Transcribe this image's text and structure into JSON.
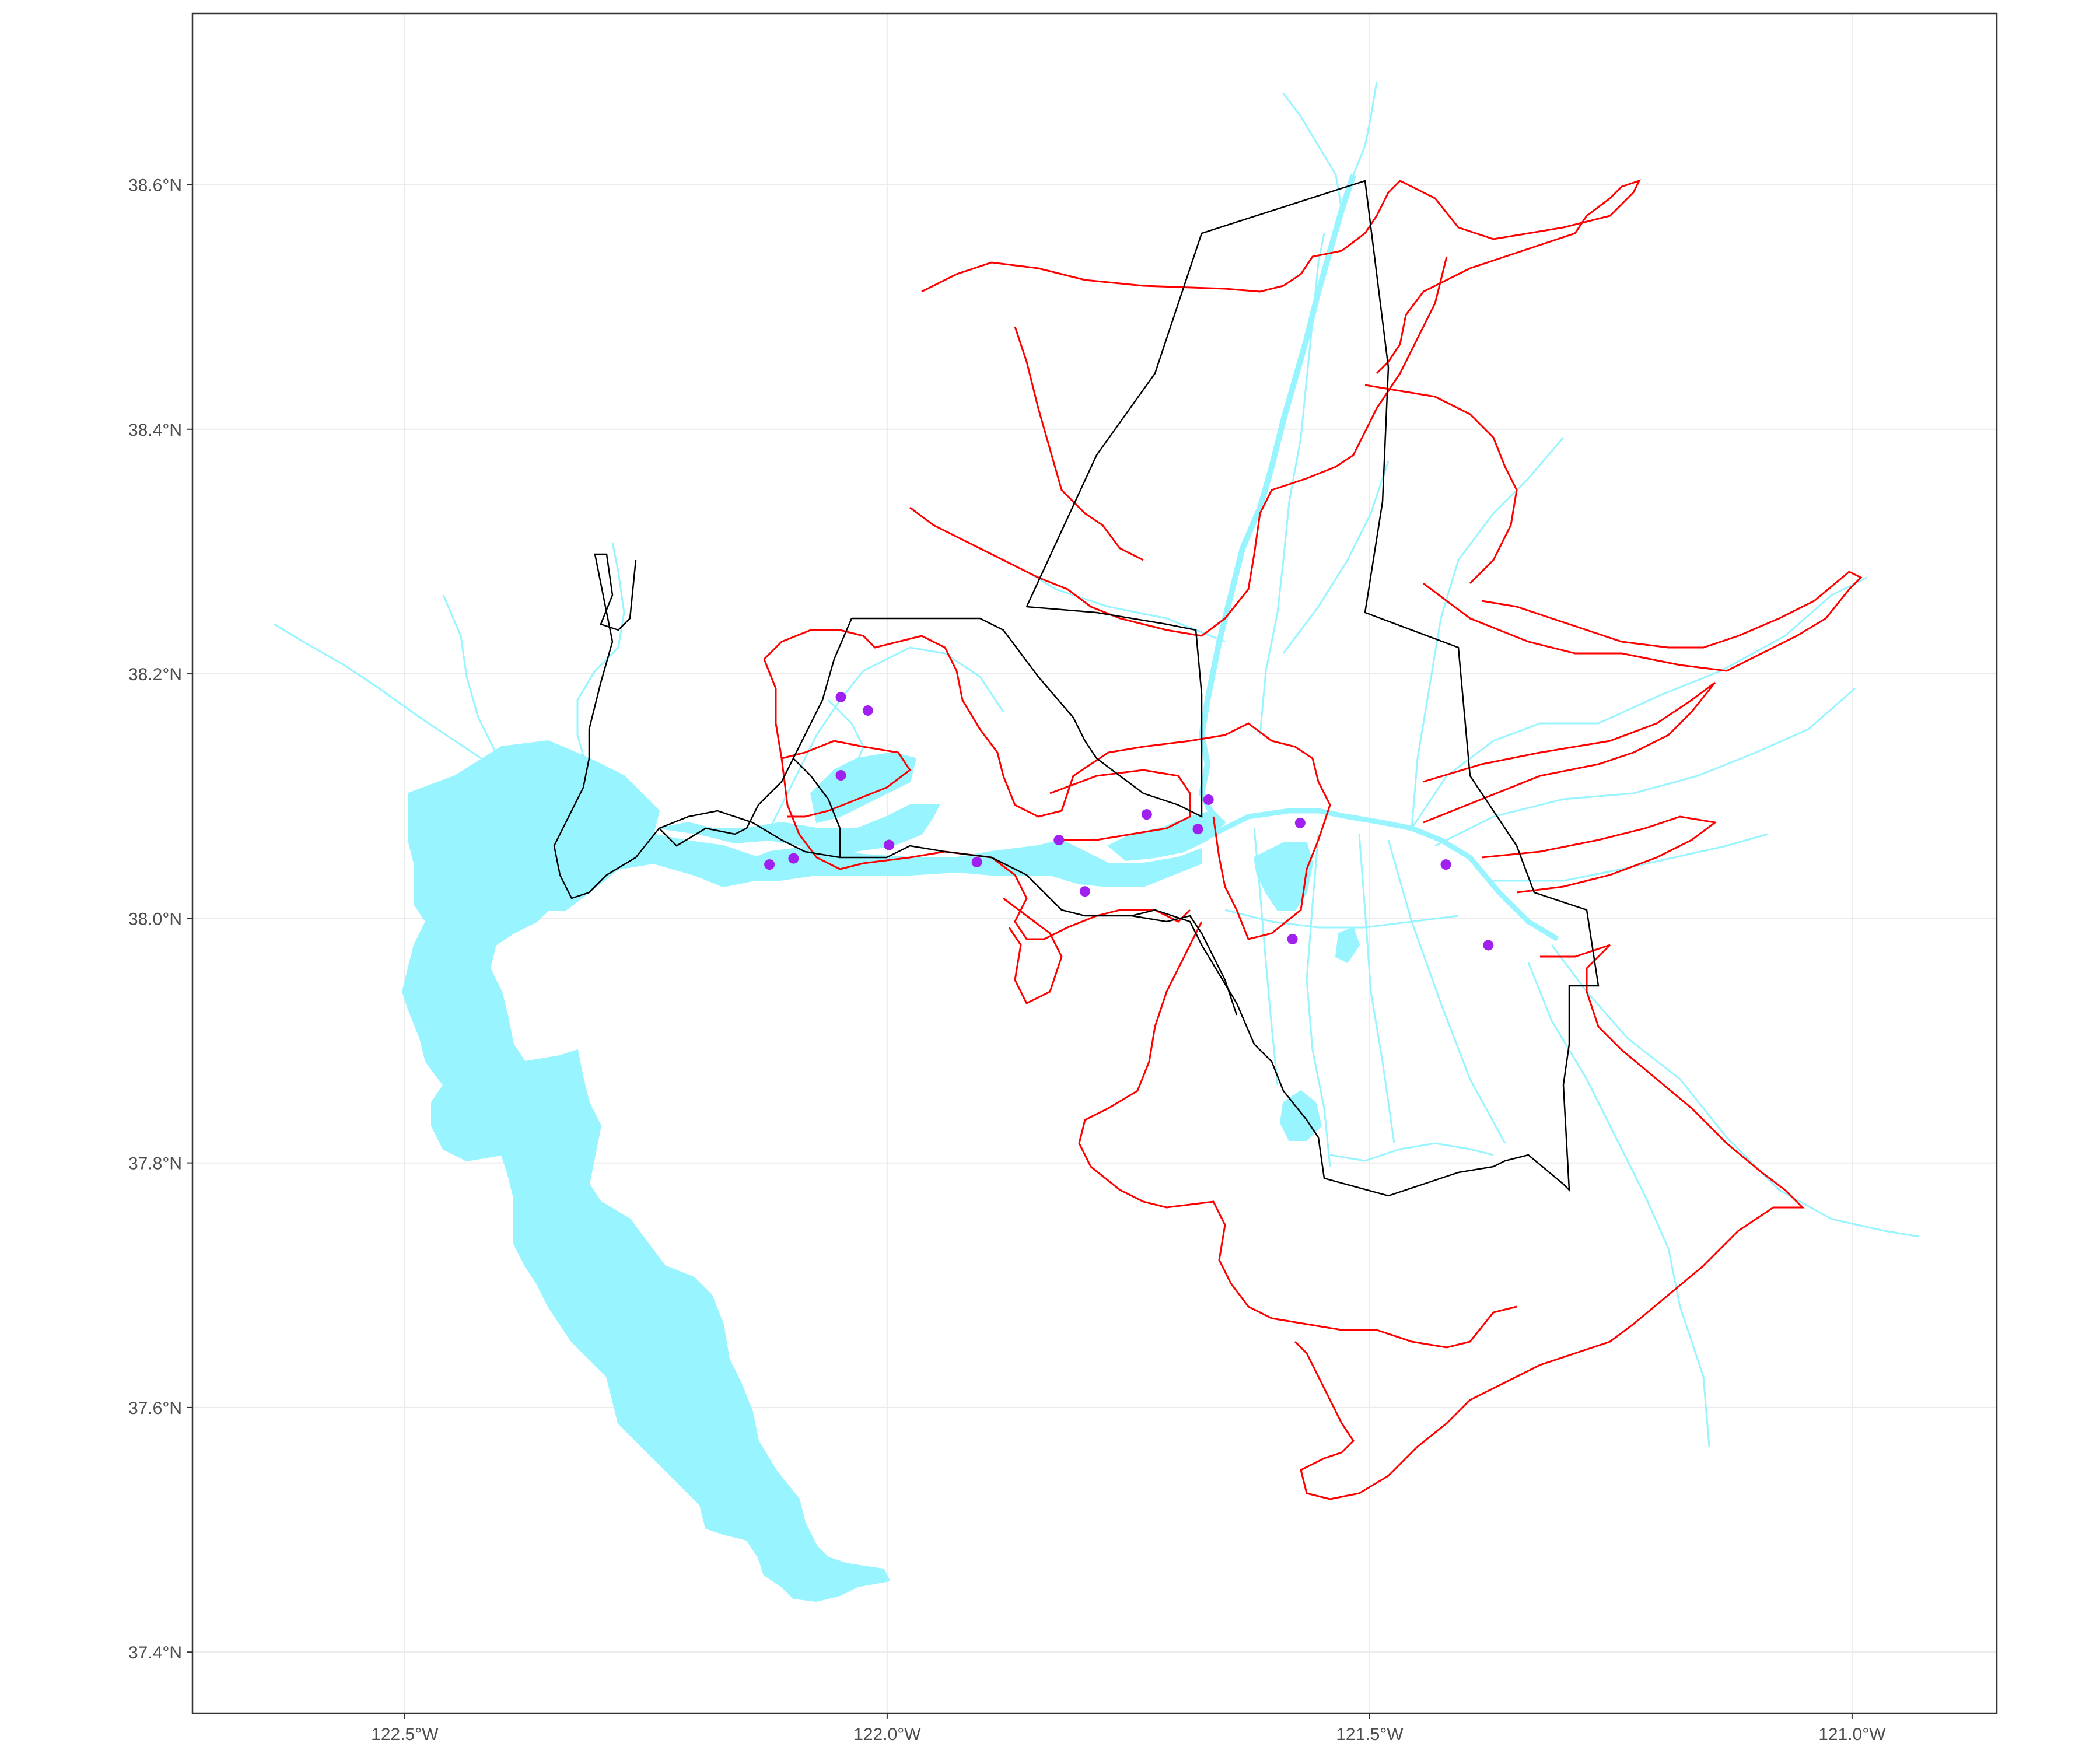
{
  "map": {
    "x_axis": {
      "ticks": [
        {
          "value": -122.5,
          "label": "122.5°W"
        },
        {
          "value": -122.0,
          "label": "122.0°W"
        },
        {
          "value": -121.5,
          "label": "121.5°W"
        },
        {
          "value": -121.0,
          "label": "121.0°W"
        }
      ],
      "range": [
        -122.72,
        -120.85
      ]
    },
    "y_axis": {
      "ticks": [
        {
          "value": 37.4,
          "label": "37.4°N"
        },
        {
          "value": 37.6,
          "label": "37.6°N"
        },
        {
          "value": 37.8,
          "label": "37.8°N"
        },
        {
          "value": 38.0,
          "label": "38.0°N"
        },
        {
          "value": 38.2,
          "label": "38.2°N"
        },
        {
          "value": 38.4,
          "label": "38.4°N"
        },
        {
          "value": 38.6,
          "label": "38.6°N"
        }
      ],
      "range": [
        37.35,
        38.74
      ]
    },
    "grid": true,
    "colors": {
      "water": "#98f5ff",
      "watershed_boundary": "#ff0000",
      "region_boundary": "#000000",
      "station": "#a020f0",
      "grid": "#ebebeb",
      "panel_border": "#333333"
    },
    "stations": [
      {
        "lon": -122.048,
        "lat": 38.181
      },
      {
        "lon": -122.02,
        "lat": 38.17
      },
      {
        "lon": -122.048,
        "lat": 38.117
      },
      {
        "lon": -122.122,
        "lat": 38.044
      },
      {
        "lon": -122.097,
        "lat": 38.049
      },
      {
        "lon": -121.998,
        "lat": 38.06
      },
      {
        "lon": -121.907,
        "lat": 38.046
      },
      {
        "lon": -121.822,
        "lat": 38.064
      },
      {
        "lon": -121.795,
        "lat": 38.022
      },
      {
        "lon": -121.731,
        "lat": 38.085
      },
      {
        "lon": -121.667,
        "lat": 38.097
      },
      {
        "lon": -121.678,
        "lat": 38.073
      },
      {
        "lon": -121.572,
        "lat": 38.078
      },
      {
        "lon": -121.58,
        "lat": 37.983
      },
      {
        "lon": -121.421,
        "lat": 38.044
      },
      {
        "lon": -121.377,
        "lat": 37.978
      }
    ]
  }
}
